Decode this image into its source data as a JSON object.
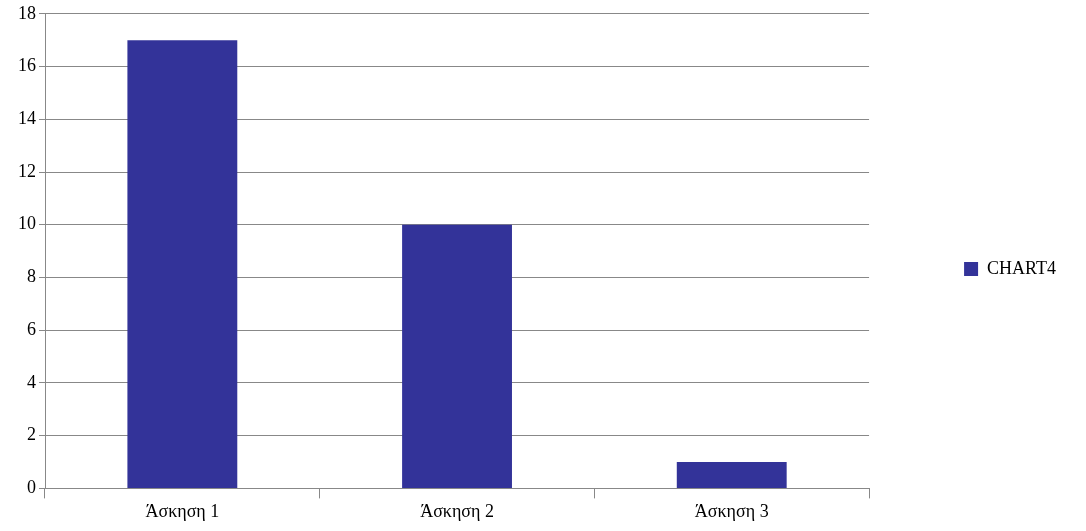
{
  "chart_data": {
    "type": "bar",
    "categories": [
      "Άσκηση 1",
      "Άσκηση 2",
      "Άσκηση 3"
    ],
    "series": [
      {
        "name": "CHART4",
        "color": "#333399",
        "values": [
          17,
          10,
          1
        ]
      }
    ],
    "ylim": [
      0,
      18
    ],
    "yticks": [
      0,
      2,
      4,
      6,
      8,
      10,
      12,
      14,
      16,
      18
    ],
    "grid": "y",
    "legend": "right"
  }
}
